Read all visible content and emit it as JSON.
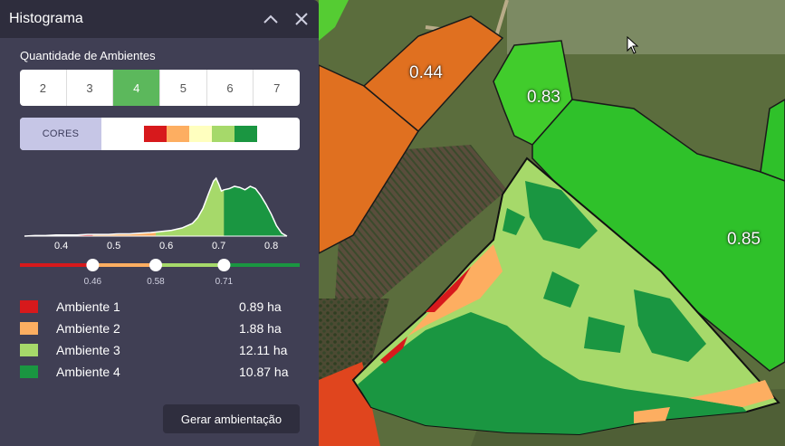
{
  "panel": {
    "title": "Histograma",
    "section_label": "Quantidade de Ambientes",
    "env_counts": [
      "2",
      "3",
      "4",
      "5",
      "6",
      "7"
    ],
    "selected_count": "4",
    "colors_label": "CORES",
    "palette": [
      "#d7191c",
      "#fdae61",
      "#ffffbf",
      "#a6d96a",
      "#1a9641"
    ],
    "generate_button": "Gerar ambientação"
  },
  "chart_data": {
    "type": "area",
    "title": "",
    "xlabel": "",
    "ylabel": "",
    "xlim": [
      0.33,
      0.83
    ],
    "x_ticks": [
      "0.4",
      "0.5",
      "0.6",
      "0.7",
      "0.8"
    ],
    "thresholds": [
      0.46,
      0.58,
      0.71
    ],
    "threshold_labels": [
      "0.46",
      "0.58",
      "0.71"
    ],
    "class_colors": [
      "#d7191c",
      "#fdae61",
      "#a6d96a",
      "#1a9641"
    ],
    "series": [
      {
        "x": [
          0.33,
          0.35,
          0.37,
          0.39,
          0.41,
          0.43,
          0.45,
          0.47,
          0.49,
          0.51,
          0.53,
          0.55,
          0.57,
          0.59,
          0.61,
          0.63,
          0.65,
          0.66,
          0.67,
          0.68,
          0.69,
          0.695,
          0.7,
          0.705,
          0.71,
          0.72,
          0.73,
          0.74,
          0.75,
          0.76,
          0.77,
          0.78,
          0.79,
          0.8,
          0.81,
          0.82,
          0.83
        ],
        "values": [
          0.0,
          0.01,
          0.01,
          0.02,
          0.02,
          0.02,
          0.03,
          0.03,
          0.03,
          0.04,
          0.04,
          0.05,
          0.06,
          0.08,
          0.1,
          0.14,
          0.22,
          0.32,
          0.48,
          0.72,
          0.95,
          1.0,
          0.9,
          0.78,
          0.8,
          0.82,
          0.86,
          0.84,
          0.8,
          0.86,
          0.82,
          0.7,
          0.55,
          0.38,
          0.18,
          0.05,
          0.0
        ]
      }
    ]
  },
  "legend": [
    {
      "name": "Ambiente 1",
      "area": "0.89 ha",
      "color": "#d7191c"
    },
    {
      "name": "Ambiente 2",
      "area": "1.88 ha",
      "color": "#fdae61"
    },
    {
      "name": "Ambiente 3",
      "area": "12.11 ha",
      "color": "#a6d96a"
    },
    {
      "name": "Ambiente 4",
      "area": "10.87 ha",
      "color": "#1a9641"
    }
  ],
  "map": {
    "field_labels": [
      "0.44",
      "0.83",
      "0.85"
    ]
  },
  "icons": {
    "collapse": "chevron-up-icon",
    "close": "close-icon",
    "cursor": "mouse-pointer-icon"
  }
}
